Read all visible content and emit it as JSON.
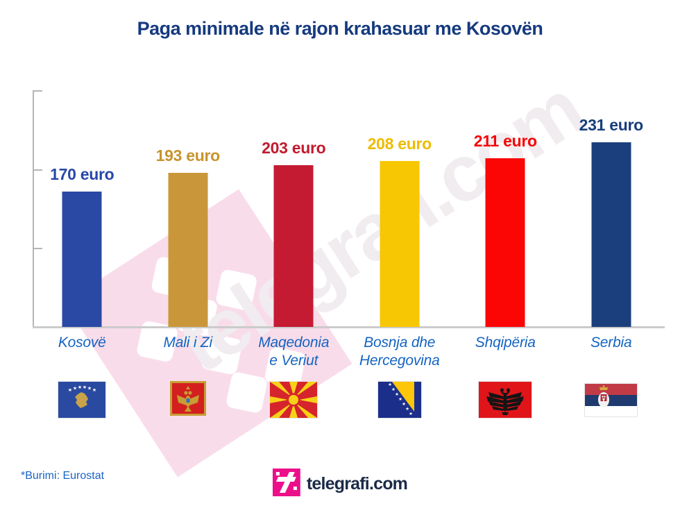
{
  "title": "Paga minimale në rajon krahasuar me Kosovën",
  "watermark": {
    "text": "telegrafi.com",
    "icon": "telegrafi-diamond-logo",
    "square_color": "#f9dcea"
  },
  "source_note": "*Burimi: Eurostat",
  "footer": {
    "brand_text": "telegrafi.com",
    "brand_icon": "telegrafi-t-icon",
    "brand_color": "#ec0f8a",
    "brand_text_color": "#1b2a48"
  },
  "chart_data": {
    "type": "bar",
    "title": "Paga minimale në rajon krahasuar me Kosovën",
    "unit": "euro",
    "categories": [
      "Kosovë",
      "Mali i Zi",
      "Maqedonia e Veriut",
      "Bosnja dhe Hercegovina",
      "Shqipëria",
      "Serbia"
    ],
    "category_lines": [
      [
        "Kosovë",
        ""
      ],
      [
        "Mali i Zi",
        ""
      ],
      [
        "Maqedonia",
        "e Veriut"
      ],
      [
        "Bosnja dhe",
        "Hercegovina"
      ],
      [
        "Shqipëria",
        ""
      ],
      [
        "Serbia",
        ""
      ]
    ],
    "values": [
      170,
      193,
      203,
      208,
      211,
      231
    ],
    "value_labels": [
      "170 euro",
      "193 euro",
      "203 euro",
      "208 euro",
      "211 euro",
      "231 euro"
    ],
    "bar_colors": [
      "#2a49a5",
      "#c9973a",
      "#c41b33",
      "#f8c703",
      "#fb0505",
      "#1b3f7c"
    ],
    "value_label_colors": [
      "#2847a8",
      "#c8932d",
      "#c01b2e",
      "#eebc00",
      "#f50505",
      "#173d7a"
    ],
    "category_label_color": "#1464c2",
    "flags": [
      "kosovo-flag",
      "montenegro-flag",
      "north-macedonia-flag",
      "bosnia-herzegovina-flag",
      "albania-flag",
      "serbia-flag"
    ],
    "ylim": [
      0,
      300
    ],
    "y_axis_ticks": 3,
    "gridlines": false,
    "legend": false
  }
}
